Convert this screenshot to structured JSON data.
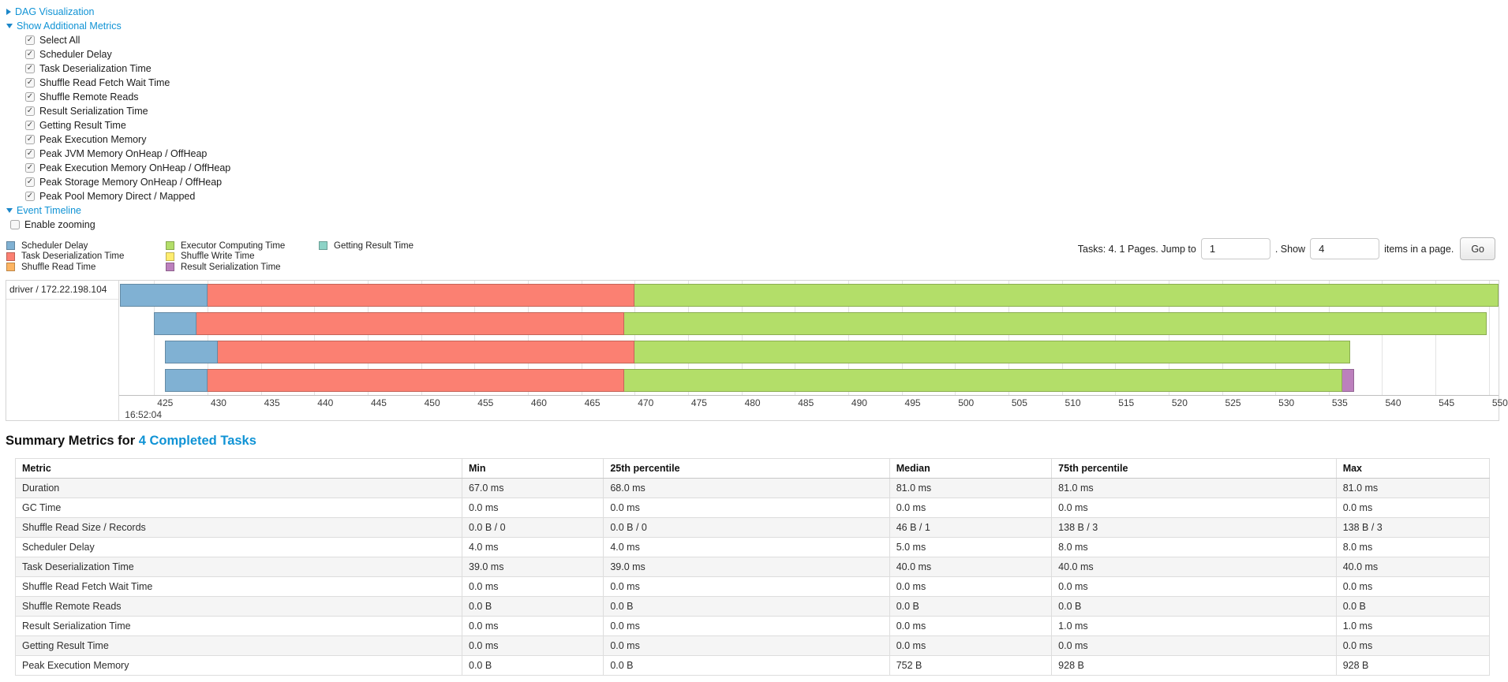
{
  "links": {
    "dag": "DAG Visualization",
    "metrics": "Show Additional Metrics",
    "timeline": "Event Timeline"
  },
  "additional_metrics": {
    "items": [
      {
        "label": "Select All",
        "checked": true
      },
      {
        "label": "Scheduler Delay",
        "checked": true
      },
      {
        "label": "Task Deserialization Time",
        "checked": true
      },
      {
        "label": "Shuffle Read Fetch Wait Time",
        "checked": true
      },
      {
        "label": "Shuffle Remote Reads",
        "checked": true
      },
      {
        "label": "Result Serialization Time",
        "checked": true
      },
      {
        "label": "Getting Result Time",
        "checked": true
      },
      {
        "label": "Peak Execution Memory",
        "checked": true
      },
      {
        "label": "Peak JVM Memory OnHeap / OffHeap",
        "checked": true
      },
      {
        "label": "Peak Execution Memory OnHeap / OffHeap",
        "checked": true
      },
      {
        "label": "Peak Storage Memory OnHeap / OffHeap",
        "checked": true
      },
      {
        "label": "Peak Pool Memory Direct / Mapped",
        "checked": true
      }
    ]
  },
  "enable_zooming": {
    "label": "Enable zooming",
    "checked": false
  },
  "legend": {
    "columns": [
      [
        {
          "key": "scheduler_delay",
          "label": "Scheduler Delay",
          "color": "#80B1D3"
        },
        {
          "key": "task_deserialization",
          "label": "Task Deserialization Time",
          "color": "#FB8072"
        },
        {
          "key": "shuffle_read",
          "label": "Shuffle Read Time",
          "color": "#FDB462"
        }
      ],
      [
        {
          "key": "executor_computing",
          "label": "Executor Computing Time",
          "color": "#B3DE69"
        },
        {
          "key": "shuffle_write",
          "label": "Shuffle Write Time",
          "color": "#FFED6F"
        },
        {
          "key": "result_serialization",
          "label": "Result Serialization Time",
          "color": "#BC80BD"
        }
      ],
      [
        {
          "key": "getting_result",
          "label": "Getting Result Time",
          "color": "#8DD3C7"
        }
      ]
    ]
  },
  "pagination": {
    "tasks_text": "Tasks: 4. 1 Pages. Jump to",
    "jump_value": "1",
    "show_text": ". Show",
    "show_value": "4",
    "suffix_text": "items in a page.",
    "go_label": "Go"
  },
  "chart_data": {
    "type": "timeline",
    "group_label": "driver / 172.22.198.104",
    "x_start": 421.8,
    "x_end": 550.9,
    "ticks": [
      425,
      430,
      435,
      440,
      445,
      450,
      455,
      460,
      465,
      470,
      475,
      480,
      485,
      490,
      495,
      500,
      505,
      510,
      515,
      520,
      525,
      530,
      535,
      540,
      545,
      550
    ],
    "major_tick_label": "16:52:04",
    "major_tick_at": 425,
    "tasks": [
      {
        "segments": [
          {
            "key": "scheduler_delay",
            "start": 421.8,
            "end": 430
          },
          {
            "key": "task_deserialization",
            "start": 430,
            "end": 470
          },
          {
            "key": "executor_computing",
            "start": 470,
            "end": 550.9
          }
        ]
      },
      {
        "segments": [
          {
            "key": "scheduler_delay",
            "start": 425,
            "end": 429
          },
          {
            "key": "task_deserialization",
            "start": 429,
            "end": 469
          },
          {
            "key": "executor_computing",
            "start": 469,
            "end": 549.8
          }
        ]
      },
      {
        "segments": [
          {
            "key": "scheduler_delay",
            "start": 426,
            "end": 431
          },
          {
            "key": "task_deserialization",
            "start": 431,
            "end": 470
          },
          {
            "key": "executor_computing",
            "start": 470,
            "end": 537
          }
        ]
      },
      {
        "segments": [
          {
            "key": "scheduler_delay",
            "start": 426,
            "end": 430
          },
          {
            "key": "task_deserialization",
            "start": 430,
            "end": 469
          },
          {
            "key": "executor_computing",
            "start": 469,
            "end": 536.3
          },
          {
            "key": "result_serialization",
            "start": 536.3,
            "end": 537.4
          }
        ]
      }
    ]
  },
  "summary": {
    "title_prefix": "Summary Metrics for ",
    "title_link": "4 Completed Tasks",
    "columns": [
      "Metric",
      "Min",
      "25th percentile",
      "Median",
      "75th percentile",
      "Max"
    ],
    "col_widths": [
      "30.3%",
      "9.6%",
      "19.4%",
      "11.0%",
      "19.3%",
      "10.4%"
    ],
    "rows": [
      {
        "metric": "Duration",
        "values": [
          "67.0 ms",
          "68.0 ms",
          "81.0 ms",
          "81.0 ms",
          "81.0 ms"
        ]
      },
      {
        "metric": "GC Time",
        "values": [
          "0.0 ms",
          "0.0 ms",
          "0.0 ms",
          "0.0 ms",
          "0.0 ms"
        ]
      },
      {
        "metric": "Shuffle Read Size / Records",
        "values": [
          "0.0 B / 0",
          "0.0 B / 0",
          "46 B / 1",
          "138 B / 3",
          "138 B / 3"
        ]
      },
      {
        "metric": "Scheduler Delay",
        "values": [
          "4.0 ms",
          "4.0 ms",
          "5.0 ms",
          "8.0 ms",
          "8.0 ms"
        ]
      },
      {
        "metric": "Task Deserialization Time",
        "values": [
          "39.0 ms",
          "39.0 ms",
          "40.0 ms",
          "40.0 ms",
          "40.0 ms"
        ]
      },
      {
        "metric": "Shuffle Read Fetch Wait Time",
        "values": [
          "0.0 ms",
          "0.0 ms",
          "0.0 ms",
          "0.0 ms",
          "0.0 ms"
        ]
      },
      {
        "metric": "Shuffle Remote Reads",
        "values": [
          "0.0 B",
          "0.0 B",
          "0.0 B",
          "0.0 B",
          "0.0 B"
        ]
      },
      {
        "metric": "Result Serialization Time",
        "values": [
          "0.0 ms",
          "0.0 ms",
          "0.0 ms",
          "1.0 ms",
          "1.0 ms"
        ]
      },
      {
        "metric": "Getting Result Time",
        "values": [
          "0.0 ms",
          "0.0 ms",
          "0.0 ms",
          "0.0 ms",
          "0.0 ms"
        ]
      },
      {
        "metric": "Peak Execution Memory",
        "values": [
          "0.0 B",
          "0.0 B",
          "752 B",
          "928 B",
          "928 B"
        ]
      }
    ]
  }
}
